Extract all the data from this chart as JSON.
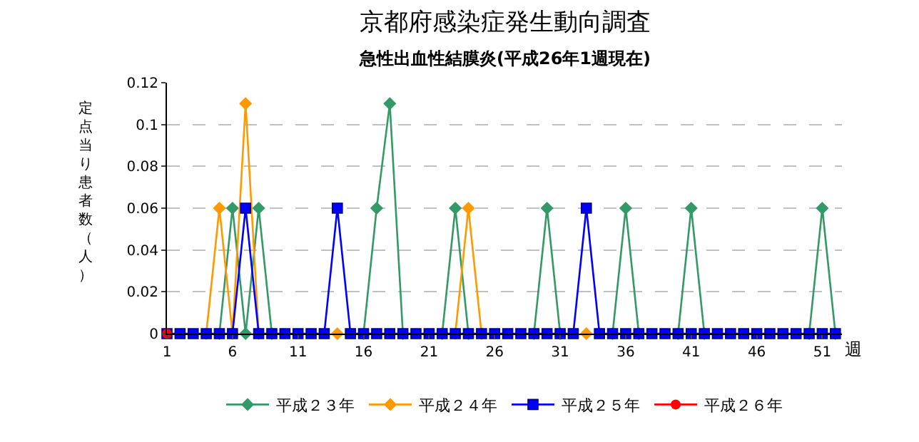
{
  "chart_data": {
    "type": "line",
    "title": "京都府感染症発生動向調査",
    "subtitle": "急性出血性結膜炎(平成26年1週現在)",
    "xlabel": "週",
    "ylabel": "定点当り患者数（人）",
    "x": [
      1,
      2,
      3,
      4,
      5,
      6,
      7,
      8,
      9,
      10,
      11,
      12,
      13,
      14,
      15,
      16,
      17,
      18,
      19,
      20,
      21,
      22,
      23,
      24,
      25,
      26,
      27,
      28,
      29,
      30,
      31,
      32,
      33,
      34,
      35,
      36,
      37,
      38,
      39,
      40,
      41,
      42,
      43,
      44,
      45,
      46,
      47,
      48,
      49,
      50,
      51,
      52
    ],
    "series": [
      {
        "name": "平成２３年",
        "color": "#339966",
        "marker": "diamond",
        "values": [
          null,
          null,
          null,
          null,
          0,
          0.06,
          0,
          0.06,
          0,
          null,
          null,
          null,
          null,
          null,
          null,
          0,
          0.06,
          0.11,
          0,
          null,
          null,
          0,
          0.06,
          0,
          null,
          null,
          null,
          null,
          0,
          0.06,
          0,
          null,
          null,
          null,
          0,
          0.06,
          0,
          null,
          null,
          0,
          0.06,
          0,
          null,
          null,
          null,
          null,
          null,
          null,
          null,
          0,
          0.06,
          0
        ]
      },
      {
        "name": "平成２４年",
        "color": "#ff9900",
        "marker": "diamond",
        "values": [
          null,
          null,
          null,
          0,
          0.06,
          0,
          0.11,
          0,
          null,
          null,
          null,
          null,
          null,
          0,
          null,
          null,
          null,
          null,
          null,
          null,
          null,
          null,
          0,
          0.06,
          0,
          null,
          null,
          null,
          null,
          null,
          null,
          null,
          0,
          null,
          null,
          null,
          null,
          null,
          null,
          null,
          null,
          null,
          null,
          null,
          null,
          null,
          null,
          null,
          null,
          null,
          null,
          null
        ]
      },
      {
        "name": "平成２５年",
        "color": "#0000ff",
        "marker": "square",
        "values": [
          0,
          0,
          0,
          0,
          0,
          0,
          0.06,
          0,
          0,
          0,
          0,
          0,
          0,
          0.06,
          0,
          0,
          0,
          0,
          0,
          0,
          0,
          0,
          0,
          0,
          0,
          0,
          0,
          0,
          0,
          0,
          0,
          0,
          0.06,
          0,
          0,
          0,
          0,
          0,
          0,
          0,
          0,
          0,
          0,
          0,
          0,
          0,
          0,
          0,
          0,
          0,
          0,
          0
        ]
      },
      {
        "name": "平成２６年",
        "color": "#ff0000",
        "marker": "circle",
        "x": [
          1
        ],
        "values": [
          0
        ]
      }
    ],
    "xlim": [
      1,
      52.5
    ],
    "xticks": [
      1,
      6,
      11,
      16,
      21,
      26,
      31,
      36,
      41,
      46,
      51
    ],
    "ylim": [
      0,
      0.12
    ],
    "yticks": [
      0,
      0.02,
      0.04,
      0.06,
      0.08,
      0.1,
      0.12
    ],
    "grid": "y",
    "legend": "bottom"
  }
}
